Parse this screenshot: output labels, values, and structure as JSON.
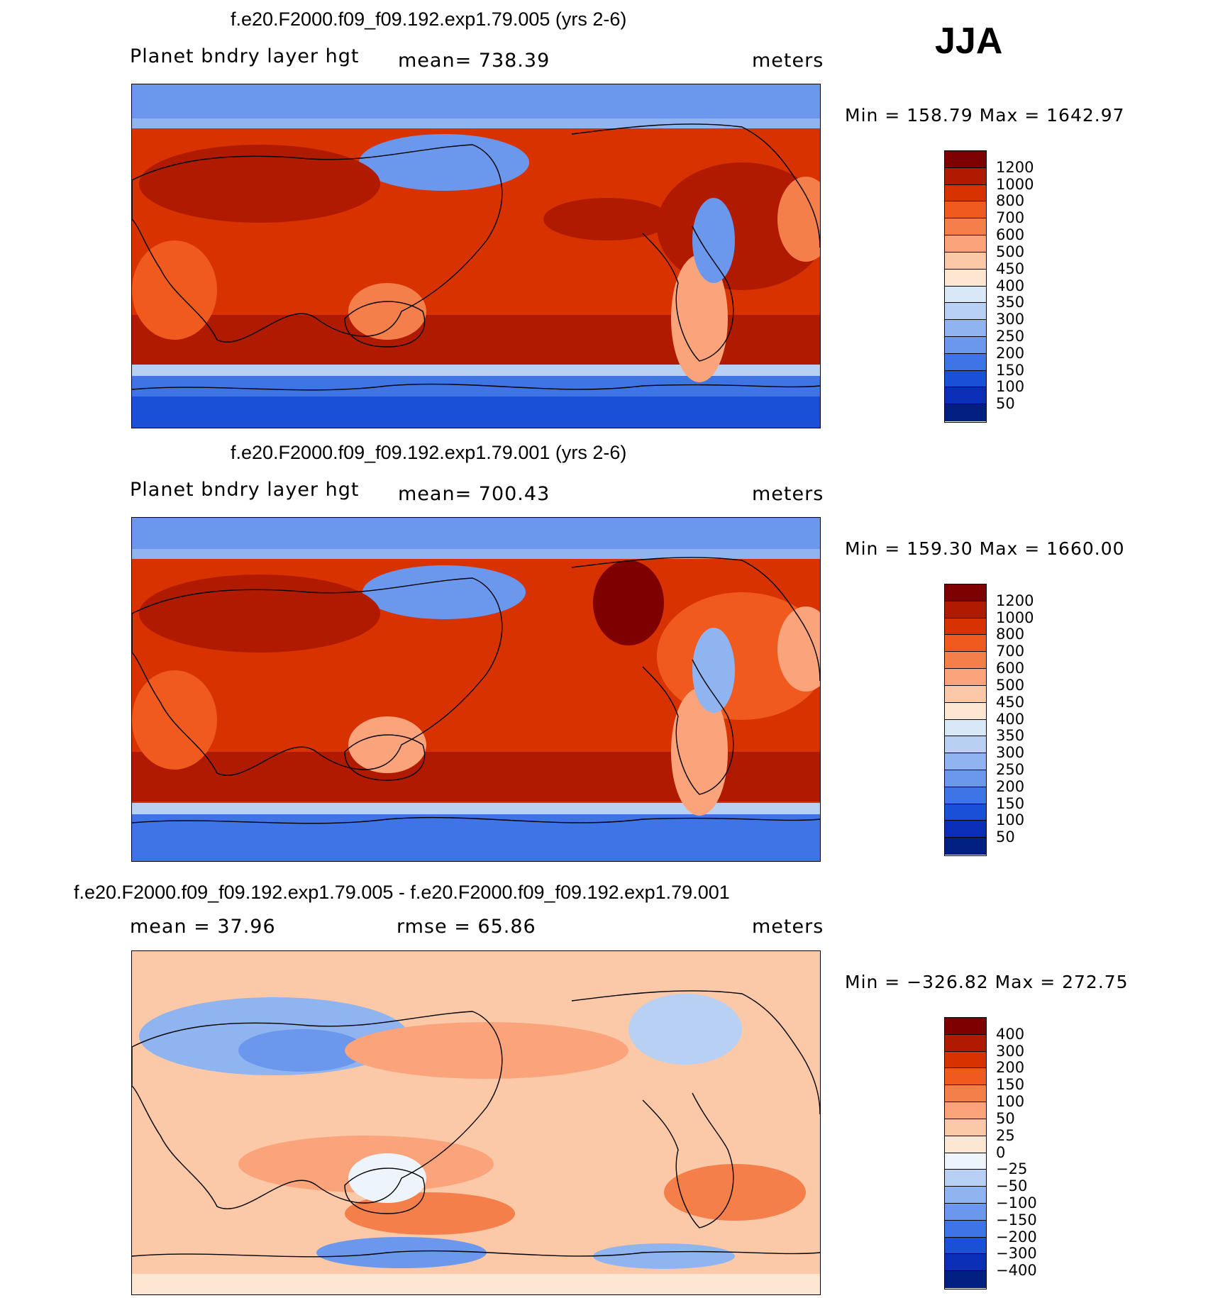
{
  "season": "JJA",
  "panels": [
    {
      "title": "f.e20.F2000.f09_f09.192.exp1.79.005 (yrs 2-6)",
      "left_label": "Planet bndry layer hgt",
      "center_label": "mean=  738.39",
      "units": "meters",
      "minmax": "Min  =  158.79  Max  =  1642.97",
      "colorbar": {
        "labels": [
          "1200",
          "1000",
          "800",
          "700",
          "600",
          "500",
          "450",
          "400",
          "350",
          "300",
          "250",
          "200",
          "150",
          "100",
          "50"
        ],
        "colors": [
          "#7f0000",
          "#b01a00",
          "#d83200",
          "#f05a1e",
          "#f57f4b",
          "#fba47c",
          "#fcc9a8",
          "#fde6d2",
          "#d9e8f7",
          "#b7d0f3",
          "#8fb4f0",
          "#6b97ec",
          "#3e74e6",
          "#1a4fd8",
          "#0a2eb8",
          "#001f80"
        ]
      },
      "data_range": [
        158.79,
        1642.97
      ],
      "mean": 738.39
    },
    {
      "title": "f.e20.F2000.f09_f09.192.exp1.79.001 (yrs 2-6)",
      "left_label": "Planet bndry layer hgt",
      "center_label": "mean=  700.43",
      "units": "meters",
      "minmax": "Min  =  159.30  Max  =  1660.00",
      "colorbar": {
        "labels": [
          "1200",
          "1000",
          "800",
          "700",
          "600",
          "500",
          "450",
          "400",
          "350",
          "300",
          "250",
          "200",
          "150",
          "100",
          "50"
        ],
        "colors": [
          "#7f0000",
          "#b01a00",
          "#d83200",
          "#f05a1e",
          "#f57f4b",
          "#fba47c",
          "#fcc9a8",
          "#fde6d2",
          "#d9e8f7",
          "#b7d0f3",
          "#8fb4f0",
          "#6b97ec",
          "#3e74e6",
          "#1a4fd8",
          "#0a2eb8",
          "#001f80"
        ]
      },
      "data_range": [
        159.3,
        1660.0
      ],
      "mean": 700.43
    },
    {
      "title": "f.e20.F2000.f09_f09.192.exp1.79.005 - f.e20.F2000.f09_f09.192.exp1.79.001",
      "left_label": "mean =   37.96",
      "center_label": "rmse =   65.86",
      "units": "meters",
      "minmax": "Min  =  −326.82  Max  =  272.75",
      "colorbar": {
        "labels": [
          "400",
          "300",
          "200",
          "150",
          "100",
          "50",
          "25",
          "0",
          "−25",
          "−50",
          "−100",
          "−150",
          "−200",
          "−300",
          "−400"
        ],
        "colors": [
          "#7f0000",
          "#b01a00",
          "#d83200",
          "#f05a1e",
          "#f57f4b",
          "#fba47c",
          "#fcc9a8",
          "#fde6d2",
          "#eef4fb",
          "#b7d0f3",
          "#8fb4f0",
          "#6b97ec",
          "#3e74e6",
          "#1a4fd8",
          "#0a2eb8",
          "#001f80"
        ]
      },
      "data_range": [
        -326.82,
        272.75
      ],
      "mean": 37.96,
      "rmse": 65.86
    }
  ]
}
